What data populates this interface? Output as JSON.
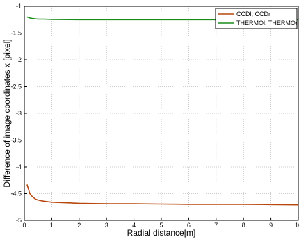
{
  "chart_data": {
    "type": "line",
    "title": "",
    "xlabel": "Radial distance[m]",
    "ylabel": "Difference of image coordinates x [pixel]",
    "xlim": [
      0,
      10
    ],
    "ylim": [
      -5,
      -1
    ],
    "x_ticks": [
      0,
      1,
      2,
      3,
      4,
      5,
      6,
      7,
      8,
      9,
      10
    ],
    "x_tick_labels": [
      "0",
      "1",
      "2",
      "3",
      "4",
      "5",
      "6",
      "7",
      "8",
      "9",
      "10"
    ],
    "y_ticks": [
      -1,
      -1.5,
      -2,
      -2.5,
      -3,
      -3.5,
      -4,
      -4.5,
      -5
    ],
    "y_tick_labels": [
      "-1",
      "-1.5",
      "-2",
      "-2.5",
      "-3",
      "-3.5",
      "-4",
      "-4.5",
      "-5"
    ],
    "grid": true,
    "legend_position": "top-right",
    "series": [
      {
        "name": "CCDl, CCDr",
        "color": "#b8470e",
        "x": [
          0.1,
          0.15,
          0.2,
          0.3,
          0.4,
          0.5,
          0.7,
          1,
          1.5,
          2,
          3,
          4,
          5,
          6,
          7,
          8,
          9,
          10
        ],
        "y": [
          -4.33,
          -4.42,
          -4.5,
          -4.56,
          -4.6,
          -4.62,
          -4.64,
          -4.66,
          -4.67,
          -4.68,
          -4.69,
          -4.69,
          -4.695,
          -4.7,
          -4.7,
          -4.7,
          -4.705,
          -4.71
        ]
      },
      {
        "name": "THERMOl, THERMOr",
        "color": "#1a8c1a",
        "x": [
          0.1,
          0.2,
          0.3,
          0.5,
          0.7,
          1,
          2,
          3,
          4,
          5,
          6,
          7,
          8,
          9,
          10
        ],
        "y": [
          -1.2,
          -1.22,
          -1.23,
          -1.24,
          -1.24,
          -1.245,
          -1.25,
          -1.25,
          -1.25,
          -1.25,
          -1.25,
          -1.25,
          -1.25,
          -1.25,
          -1.25
        ]
      }
    ]
  }
}
